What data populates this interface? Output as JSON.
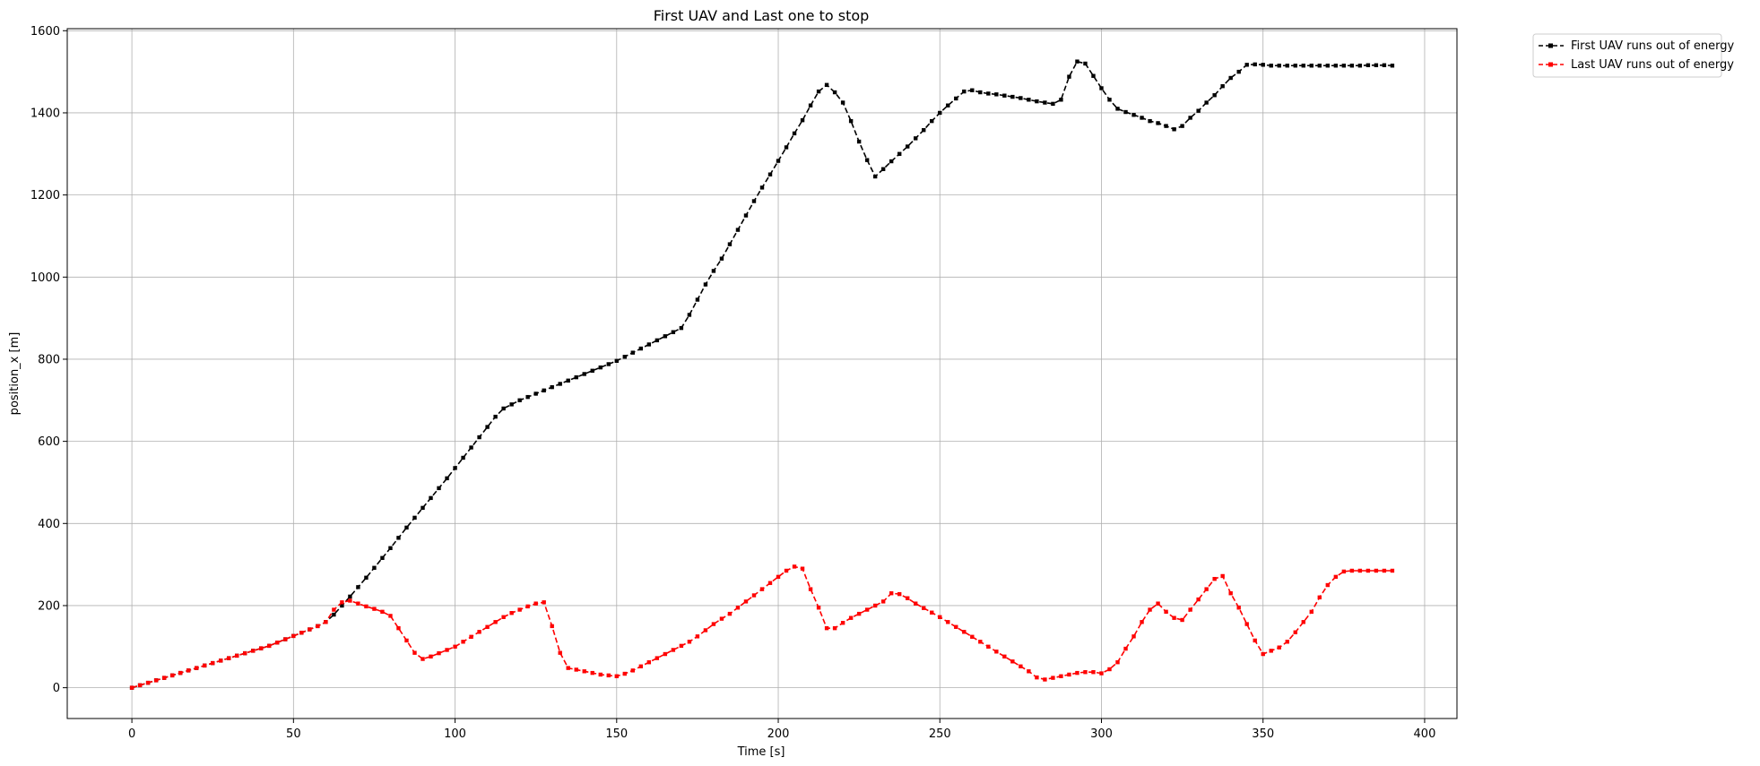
{
  "chart_data": {
    "type": "line",
    "title": "First UAV and Last one to stop",
    "xlabel": "Time [s]",
    "ylabel": "position_x [m]",
    "xlim": [
      -20,
      410
    ],
    "ylim": [
      -75,
      1605
    ],
    "x_ticks": [
      0,
      50,
      100,
      150,
      200,
      250,
      300,
      350,
      400
    ],
    "y_ticks": [
      0,
      200,
      400,
      600,
      800,
      1000,
      1200,
      1400,
      1600
    ],
    "x_tick_labels": [
      "0",
      "50",
      "100",
      "150",
      "200",
      "250",
      "300",
      "350",
      "400"
    ],
    "y_tick_labels": [
      "0",
      "200",
      "400",
      "600",
      "800",
      "1000",
      "1200",
      "1400",
      "1600"
    ],
    "grid": true,
    "legend_position": "outside-top-right",
    "series": [
      {
        "name": "First UAV runs out of energy",
        "color": "#000000",
        "linestyle": "dashed",
        "marker": "square",
        "points": [
          [
            0,
            0
          ],
          [
            2.5,
            6
          ],
          [
            5,
            12
          ],
          [
            7.5,
            18
          ],
          [
            10,
            24
          ],
          [
            12.5,
            30
          ],
          [
            15,
            36
          ],
          [
            17.5,
            42
          ],
          [
            20,
            48
          ],
          [
            22.5,
            54
          ],
          [
            25,
            60
          ],
          [
            27.5,
            66
          ],
          [
            30,
            72
          ],
          [
            32.5,
            78
          ],
          [
            35,
            84
          ],
          [
            37.5,
            90
          ],
          [
            40,
            96
          ],
          [
            42.5,
            102
          ],
          [
            45,
            110
          ],
          [
            47.5,
            118
          ],
          [
            50,
            126
          ],
          [
            52.5,
            134
          ],
          [
            55,
            142
          ],
          [
            57.5,
            150
          ],
          [
            60,
            160
          ],
          [
            62.5,
            178
          ],
          [
            65,
            200
          ],
          [
            67.5,
            222
          ],
          [
            70,
            245
          ],
          [
            72.5,
            268
          ],
          [
            75,
            292
          ],
          [
            77.5,
            316
          ],
          [
            80,
            340
          ],
          [
            82.5,
            365
          ],
          [
            85,
            390
          ],
          [
            87.5,
            414
          ],
          [
            90,
            438
          ],
          [
            92.5,
            462
          ],
          [
            95,
            486
          ],
          [
            97.5,
            510
          ],
          [
            100,
            535
          ],
          [
            102.5,
            560
          ],
          [
            105,
            585
          ],
          [
            107.5,
            610
          ],
          [
            110,
            635
          ],
          [
            112.5,
            660
          ],
          [
            115,
            680
          ],
          [
            117.5,
            690
          ],
          [
            120,
            700
          ],
          [
            122.5,
            708
          ],
          [
            125,
            716
          ],
          [
            127.5,
            724
          ],
          [
            130,
            732
          ],
          [
            132.5,
            740
          ],
          [
            135,
            748
          ],
          [
            137.5,
            756
          ],
          [
            140,
            764
          ],
          [
            142.5,
            772
          ],
          [
            145,
            780
          ],
          [
            147.5,
            788
          ],
          [
            150,
            796
          ],
          [
            152.5,
            806
          ],
          [
            155,
            816
          ],
          [
            157.5,
            826
          ],
          [
            160,
            836
          ],
          [
            162.5,
            846
          ],
          [
            165,
            856
          ],
          [
            167.5,
            866
          ],
          [
            170,
            876
          ],
          [
            172.5,
            908
          ],
          [
            175,
            945
          ],
          [
            177.5,
            982
          ],
          [
            180,
            1015
          ],
          [
            182.5,
            1045
          ],
          [
            185,
            1080
          ],
          [
            187.5,
            1115
          ],
          [
            190,
            1150
          ],
          [
            192.5,
            1185
          ],
          [
            195,
            1218
          ],
          [
            197.5,
            1250
          ],
          [
            200,
            1283
          ],
          [
            202.5,
            1316
          ],
          [
            205,
            1350
          ],
          [
            207.5,
            1382
          ],
          [
            210,
            1418
          ],
          [
            212.5,
            1452
          ],
          [
            215,
            1468
          ],
          [
            217.5,
            1450
          ],
          [
            220,
            1425
          ],
          [
            222.5,
            1380
          ],
          [
            225,
            1330
          ],
          [
            227.5,
            1285
          ],
          [
            230,
            1245
          ],
          [
            232.5,
            1263
          ],
          [
            235,
            1282
          ],
          [
            237.5,
            1300
          ],
          [
            240,
            1318
          ],
          [
            242.5,
            1338
          ],
          [
            245,
            1358
          ],
          [
            247.5,
            1380
          ],
          [
            250,
            1400
          ],
          [
            252.5,
            1418
          ],
          [
            255,
            1435
          ],
          [
            257.5,
            1452
          ],
          [
            260,
            1455
          ],
          [
            262.5,
            1450
          ],
          [
            265,
            1447
          ],
          [
            267.5,
            1445
          ],
          [
            270,
            1442
          ],
          [
            272.5,
            1439
          ],
          [
            275,
            1436
          ],
          [
            277.5,
            1432
          ],
          [
            280,
            1428
          ],
          [
            282.5,
            1425
          ],
          [
            285,
            1422
          ],
          [
            287.5,
            1432
          ],
          [
            290,
            1488
          ],
          [
            292.5,
            1525
          ],
          [
            295,
            1520
          ],
          [
            297.5,
            1490
          ],
          [
            300,
            1460
          ],
          [
            302.5,
            1432
          ],
          [
            305,
            1410
          ],
          [
            307.5,
            1402
          ],
          [
            310,
            1395
          ],
          [
            312.5,
            1388
          ],
          [
            315,
            1380
          ],
          [
            317.5,
            1375
          ],
          [
            320,
            1368
          ],
          [
            322.5,
            1360
          ],
          [
            325,
            1368
          ],
          [
            327.5,
            1388
          ],
          [
            330,
            1405
          ],
          [
            332.5,
            1425
          ],
          [
            335,
            1443
          ],
          [
            337.5,
            1465
          ],
          [
            340,
            1485
          ],
          [
            342.5,
            1500
          ],
          [
            345,
            1517
          ],
          [
            347.5,
            1518
          ],
          [
            350,
            1517
          ],
          [
            352.5,
            1515
          ],
          [
            355,
            1515
          ],
          [
            357.5,
            1515
          ],
          [
            360,
            1515
          ],
          [
            362.5,
            1515
          ],
          [
            365,
            1515
          ],
          [
            367.5,
            1515
          ],
          [
            370,
            1515
          ],
          [
            372.5,
            1515
          ],
          [
            375,
            1515
          ],
          [
            377.5,
            1515
          ],
          [
            380,
            1515
          ],
          [
            382.5,
            1516
          ],
          [
            385,
            1516
          ],
          [
            387.5,
            1516
          ],
          [
            390,
            1515
          ]
        ]
      },
      {
        "name": "Last UAV runs out of energy",
        "color": "#ff0000",
        "linestyle": "dashed",
        "marker": "square",
        "points": [
          [
            0,
            0
          ],
          [
            2.5,
            6
          ],
          [
            5,
            12
          ],
          [
            7.5,
            18
          ],
          [
            10,
            24
          ],
          [
            12.5,
            30
          ],
          [
            15,
            36
          ],
          [
            17.5,
            42
          ],
          [
            20,
            48
          ],
          [
            22.5,
            54
          ],
          [
            25,
            60
          ],
          [
            27.5,
            66
          ],
          [
            30,
            72
          ],
          [
            32.5,
            78
          ],
          [
            35,
            84
          ],
          [
            37.5,
            90
          ],
          [
            40,
            96
          ],
          [
            42.5,
            102
          ],
          [
            45,
            110
          ],
          [
            47.5,
            118
          ],
          [
            50,
            126
          ],
          [
            52.5,
            134
          ],
          [
            55,
            142
          ],
          [
            57.5,
            150
          ],
          [
            60,
            160
          ],
          [
            62.5,
            190
          ],
          [
            65,
            208
          ],
          [
            67.5,
            212
          ],
          [
            70,
            205
          ],
          [
            72.5,
            198
          ],
          [
            75,
            192
          ],
          [
            77.5,
            185
          ],
          [
            80,
            175
          ],
          [
            82.5,
            145
          ],
          [
            85,
            115
          ],
          [
            87.5,
            85
          ],
          [
            90,
            70
          ],
          [
            92.5,
            76
          ],
          [
            95,
            84
          ],
          [
            97.5,
            92
          ],
          [
            100,
            100
          ],
          [
            102.5,
            112
          ],
          [
            105,
            124
          ],
          [
            107.5,
            136
          ],
          [
            110,
            148
          ],
          [
            112.5,
            160
          ],
          [
            115,
            172
          ],
          [
            117.5,
            182
          ],
          [
            120,
            190
          ],
          [
            122.5,
            198
          ],
          [
            125,
            205
          ],
          [
            127.5,
            208
          ],
          [
            130,
            150
          ],
          [
            132.5,
            85
          ],
          [
            135,
            48
          ],
          [
            137.5,
            44
          ],
          [
            140,
            40
          ],
          [
            142.5,
            36
          ],
          [
            145,
            32
          ],
          [
            147.5,
            30
          ],
          [
            150,
            28
          ],
          [
            152.5,
            34
          ],
          [
            155,
            42
          ],
          [
            157.5,
            52
          ],
          [
            160,
            62
          ],
          [
            162.5,
            72
          ],
          [
            165,
            82
          ],
          [
            167.5,
            92
          ],
          [
            170,
            102
          ],
          [
            172.5,
            112
          ],
          [
            175,
            125
          ],
          [
            177.5,
            140
          ],
          [
            180,
            155
          ],
          [
            182.5,
            168
          ],
          [
            185,
            180
          ],
          [
            187.5,
            195
          ],
          [
            190,
            210
          ],
          [
            192.5,
            225
          ],
          [
            195,
            240
          ],
          [
            197.5,
            255
          ],
          [
            200,
            270
          ],
          [
            202.5,
            285
          ],
          [
            205,
            295
          ],
          [
            207.5,
            290
          ],
          [
            210,
            240
          ],
          [
            212.5,
            195
          ],
          [
            215,
            145
          ],
          [
            217.5,
            145
          ],
          [
            220,
            158
          ],
          [
            222.5,
            170
          ],
          [
            225,
            180
          ],
          [
            227.5,
            190
          ],
          [
            230,
            200
          ],
          [
            232.5,
            210
          ],
          [
            235,
            230
          ],
          [
            237.5,
            228
          ],
          [
            240,
            218
          ],
          [
            242.5,
            205
          ],
          [
            245,
            194
          ],
          [
            247.5,
            183
          ],
          [
            250,
            172
          ],
          [
            252.5,
            160
          ],
          [
            255,
            148
          ],
          [
            257.5,
            136
          ],
          [
            260,
            124
          ],
          [
            262.5,
            112
          ],
          [
            265,
            100
          ],
          [
            267.5,
            88
          ],
          [
            270,
            76
          ],
          [
            272.5,
            64
          ],
          [
            275,
            52
          ],
          [
            277.5,
            40
          ],
          [
            280,
            25
          ],
          [
            282.5,
            20
          ],
          [
            285,
            24
          ],
          [
            287.5,
            28
          ],
          [
            290,
            32
          ],
          [
            292.5,
            36
          ],
          [
            295,
            38
          ],
          [
            297.5,
            38
          ],
          [
            300,
            35
          ],
          [
            302.5,
            45
          ],
          [
            305,
            62
          ],
          [
            307.5,
            95
          ],
          [
            310,
            125
          ],
          [
            312.5,
            160
          ],
          [
            315,
            190
          ],
          [
            317.5,
            205
          ],
          [
            320,
            185
          ],
          [
            322.5,
            170
          ],
          [
            325,
            165
          ],
          [
            327.5,
            190
          ],
          [
            330,
            215
          ],
          [
            332.5,
            240
          ],
          [
            335,
            265
          ],
          [
            337.5,
            272
          ],
          [
            340,
            230
          ],
          [
            342.5,
            195
          ],
          [
            345,
            155
          ],
          [
            347.5,
            115
          ],
          [
            350,
            82
          ],
          [
            352.5,
            90
          ],
          [
            355,
            98
          ],
          [
            357.5,
            112
          ],
          [
            360,
            135
          ],
          [
            362.5,
            160
          ],
          [
            365,
            185
          ],
          [
            367.5,
            220
          ],
          [
            370,
            250
          ],
          [
            372.5,
            270
          ],
          [
            375,
            283
          ],
          [
            377.5,
            285
          ],
          [
            380,
            285
          ],
          [
            382.5,
            285
          ],
          [
            385,
            285
          ],
          [
            387.5,
            285
          ],
          [
            390,
            285
          ]
        ]
      }
    ]
  }
}
